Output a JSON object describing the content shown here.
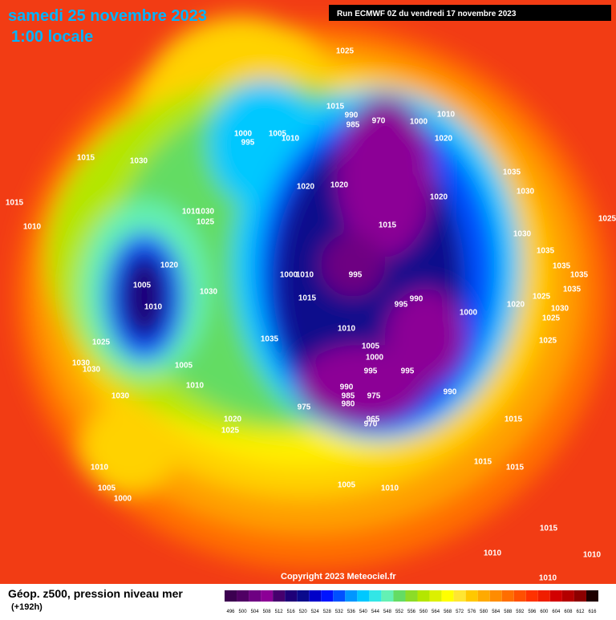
{
  "header": {
    "title": "samedi 25 novembre 2023",
    "time": "1:00 locale",
    "run": "Run ECMWF 0Z du vendredi 17 novembre 2023"
  },
  "copyright": "Copyright 2023 Meteociel.fr",
  "footer": {
    "title": "Géop. z500, pression niveau mer",
    "lead": "(+192h)"
  },
  "colorbar": {
    "ticks": [
      496,
      500,
      504,
      508,
      512,
      516,
      520,
      524,
      528,
      532,
      536,
      540,
      544,
      548,
      552,
      556,
      560,
      564,
      568,
      572,
      576,
      580,
      584,
      588,
      592,
      596,
      600,
      604,
      608,
      612,
      616
    ],
    "colors": [
      "#3c0050",
      "#500064",
      "#6e0082",
      "#8c0096",
      "#46006e",
      "#1e0078",
      "#0a0a8c",
      "#0000c8",
      "#0014ff",
      "#0050ff",
      "#0096ff",
      "#00c8ff",
      "#32e6e6",
      "#64f0b4",
      "#64dc64",
      "#8cdc28",
      "#b4e600",
      "#dcf000",
      "#ffff00",
      "#ffe632",
      "#ffc800",
      "#ffaa00",
      "#ff8c00",
      "#ff6e00",
      "#ff5000",
      "#ff3200",
      "#f01e00",
      "#d20000",
      "#b40000",
      "#8c0000",
      "#1e0000"
    ]
  },
  "isobar_labels": [
    1025,
    1015,
    990,
    985,
    970,
    1000,
    995,
    1005,
    1010,
    1015,
    1030,
    1020,
    1020,
    1000,
    1010,
    1020,
    1035,
    1030,
    1015,
    1010,
    1010,
    1030,
    1025,
    1020,
    1015,
    1030,
    1025,
    1035,
    1035,
    1035,
    1035,
    1020,
    1005,
    1010,
    1000,
    1010,
    995,
    1030,
    1015,
    995,
    990,
    1000,
    1020,
    1025,
    1030,
    1025,
    1010,
    1035,
    1025,
    1005,
    1000,
    1025,
    1030,
    1030,
    1005,
    995,
    995,
    1010,
    990,
    985,
    980,
    975,
    990,
    1030,
    975,
    965,
    970,
    1015,
    1020,
    1025,
    1015,
    1015,
    1010,
    1005,
    1000,
    1005,
    1010,
    1015,
    1010,
    1010,
    1010
  ]
}
